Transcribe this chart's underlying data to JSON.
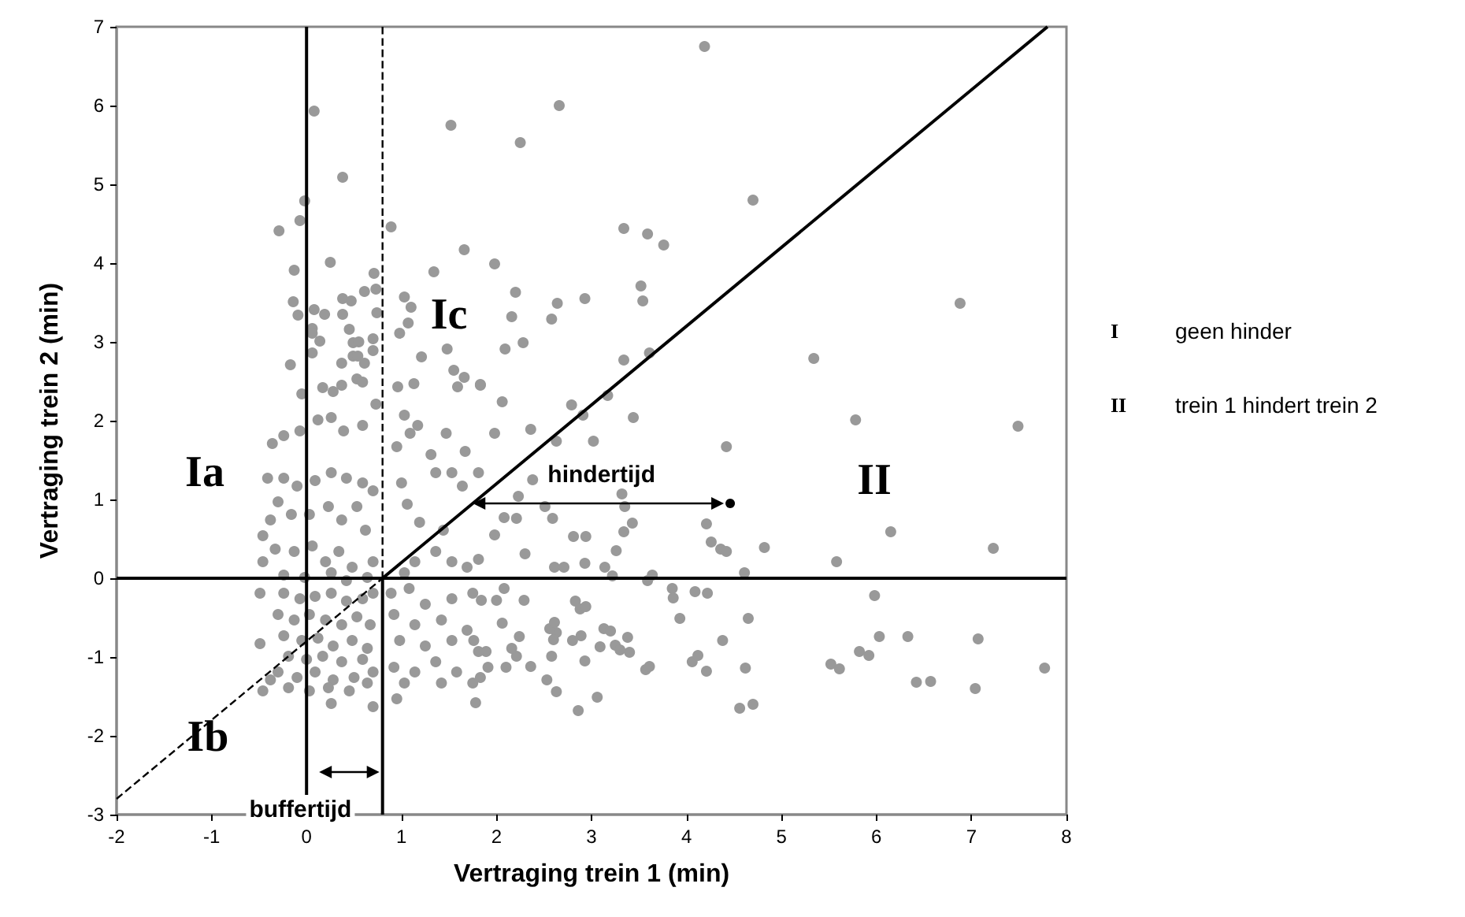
{
  "chart_data": {
    "type": "scatter",
    "xlabel": "Vertraging trein 1 (min)",
    "ylabel": "Vertraging trein 2 (min)",
    "xlim": [
      -2,
      8
    ],
    "xticks": [
      -2,
      -1,
      0,
      1,
      2,
      3,
      4,
      5,
      6,
      7,
      8
    ],
    "ylim": [
      -3,
      7
    ],
    "yticks": [
      -3,
      -2,
      -1,
      0,
      1,
      2,
      3,
      4,
      5,
      6,
      7
    ],
    "grid": false,
    "marker": "circle",
    "annotations": [
      "Ia",
      "Ib",
      "Ic",
      "II",
      "hindertijd",
      "buffertijd",
      "I",
      "geen hinder",
      "II",
      "trein 1 hindert trein 2"
    ],
    "series": [
      {
        "color": "#999999",
        "x": [
          4.19,
          2.66,
          2.25,
          4.7,
          3.34,
          3.59,
          3.76,
          1.98,
          2.2,
          3.52,
          3.54,
          2.64,
          2.93,
          2.16,
          2.58,
          2.09,
          2.28,
          3.34,
          3.61,
          6.88,
          5.34,
          1.83,
          2.06,
          2.79,
          3.17,
          5.78,
          7.49,
          4.42,
          3.44,
          3.02,
          2.36,
          1.98,
          2.63,
          2.91,
          2.23,
          2.38,
          2.51,
          2.59,
          2.08,
          2.21,
          1.98,
          2.81,
          2.94,
          3.34,
          3.43,
          3.35,
          3.32,
          3.26,
          2.3,
          2.61,
          2.71,
          2.93,
          3.14,
          3.22,
          3.59,
          3.64,
          4.21,
          4.26,
          4.36,
          4.42,
          4.61,
          4.82,
          5.58,
          6.15,
          7.23,
          5.98,
          3.85,
          3.86,
          4.09,
          4.22,
          3.93,
          4.65,
          4.38,
          4.06,
          4.12,
          4.21,
          4.62,
          4.56,
          4.7,
          5.52,
          5.61,
          5.82,
          5.92,
          6.03,
          6.33,
          7.07,
          6.42,
          6.57,
          7.04,
          7.77,
          2.83,
          2.88,
          2.94,
          3.13,
          3.2,
          3.38,
          3.4,
          3.25,
          3.3,
          3.09,
          2.93,
          2.89,
          2.8,
          2.63,
          2.6,
          2.56,
          2.61,
          2.58,
          2.24,
          2.06,
          2.29,
          2.0,
          1.84,
          2.08,
          2.36,
          2.21,
          2.16,
          2.1,
          3.57,
          3.61,
          2.53,
          2.63,
          3.06,
          2.86,
          1.91,
          1.83,
          1.89,
          1.76,
          1.78,
          0.08,
          1.52,
          0.38,
          -0.02,
          -0.07,
          -0.29,
          0.89,
          1.66,
          0.25,
          -0.13,
          0.71,
          1.34,
          0.61,
          0.73,
          0.38,
          0.47,
          -0.14,
          0.08,
          -0.09,
          0.19,
          0.38,
          0.74,
          1.03,
          1.1,
          1.07,
          0.98,
          0.45,
          0.06,
          0.06,
          0.14,
          0.06,
          0.49,
          0.55,
          0.7,
          0.7,
          0.49,
          0.54,
          0.61,
          0.37,
          -0.17,
          1.21,
          1.48,
          1.55,
          1.66,
          1.59,
          1.83,
          1.13,
          0.96,
          0.53,
          0.59,
          0.37,
          0.28,
          0.17,
          -0.05,
          -0.36,
          -0.24,
          -0.07,
          0.12,
          0.26,
          0.39,
          0.59,
          0.73,
          1.03,
          1.17,
          1.09,
          1.47,
          1.67,
          1.81,
          1.31,
          1.36,
          1.53,
          1.64,
          0.95,
          1.0,
          1.06,
          1.19,
          1.44,
          1.53,
          1.69,
          1.81,
          1.36,
          1.14,
          1.03,
          -0.41,
          -0.24,
          -0.1,
          0.09,
          0.26,
          0.42,
          0.59,
          0.7,
          -0.3,
          -0.16,
          0.03,
          0.23,
          0.37,
          0.53,
          0.62,
          -0.46,
          -0.33,
          -0.13,
          0.06,
          0.2,
          0.34,
          0.48,
          0.7,
          -0.24,
          -0.02,
          0.26,
          0.42,
          0.64,
          -0.38,
          -0.46,
          -0.49,
          -0.24,
          -0.07,
          0.09,
          0.26,
          0.42,
          0.59,
          0.7,
          -0.3,
          -0.13,
          0.03,
          0.2,
          0.37,
          0.53,
          0.67,
          -0.24,
          -0.05,
          0.12,
          0.28,
          0.48,
          0.64,
          -0.49,
          -0.19,
          0.0,
          0.17,
          0.37,
          0.59,
          -0.3,
          -0.1,
          0.09,
          0.28,
          0.5,
          0.7,
          -0.19,
          0.03,
          0.23,
          0.45,
          0.64,
          -0.46,
          -0.38,
          0.26,
          0.7,
          0.89,
          1.08,
          1.25,
          1.53,
          1.75,
          0.92,
          1.14,
          1.42,
          1.69,
          0.98,
          1.25,
          1.53,
          1.81,
          0.92,
          1.14,
          1.36,
          1.58,
          1.03,
          1.42,
          1.75,
          0.95
        ],
        "values": [
          6.75,
          6.0,
          5.53,
          4.8,
          4.44,
          4.37,
          4.23,
          3.99,
          3.63,
          3.71,
          3.52,
          3.49,
          3.55,
          3.32,
          3.29,
          2.91,
          2.99,
          2.77,
          2.86,
          3.49,
          2.79,
          2.45,
          2.24,
          2.2,
          2.32,
          2.01,
          1.93,
          1.67,
          2.04,
          1.74,
          1.89,
          1.84,
          1.74,
          2.07,
          1.04,
          1.25,
          0.91,
          0.76,
          0.77,
          0.76,
          0.55,
          0.53,
          0.53,
          0.59,
          0.7,
          0.91,
          1.07,
          0.35,
          0.31,
          0.14,
          0.14,
          0.19,
          0.14,
          0.03,
          -0.03,
          0.04,
          0.69,
          0.46,
          0.37,
          0.34,
          0.07,
          0.39,
          0.21,
          0.59,
          0.38,
          -0.22,
          -0.13,
          -0.25,
          -0.17,
          -0.19,
          -0.51,
          -0.51,
          -0.79,
          -1.06,
          -0.98,
          -1.18,
          -1.14,
          -1.65,
          -1.6,
          -1.09,
          -1.15,
          -0.93,
          -0.98,
          -0.74,
          -0.74,
          -0.77,
          -1.32,
          -1.31,
          -1.4,
          -1.14,
          -0.29,
          -0.39,
          -0.36,
          -0.64,
          -0.67,
          -0.75,
          -0.94,
          -0.85,
          -0.91,
          -0.87,
          -1.05,
          -0.73,
          -0.79,
          -0.69,
          -0.78,
          -0.64,
          -0.56,
          -0.99,
          -0.74,
          -0.57,
          -0.28,
          -0.28,
          -0.28,
          -0.13,
          -1.12,
          -0.99,
          -0.89,
          -1.13,
          -1.16,
          -1.12,
          -1.29,
          -1.44,
          -1.51,
          -1.68,
          -1.13,
          -1.26,
          -0.93,
          -0.79,
          -1.58,
          5.93,
          5.75,
          5.09,
          4.79,
          4.54,
          4.41,
          4.46,
          4.17,
          4.01,
          3.91,
          3.87,
          3.89,
          3.64,
          3.67,
          3.55,
          3.52,
          3.51,
          3.41,
          3.34,
          3.35,
          3.35,
          3.37,
          3.57,
          3.44,
          3.24,
          3.11,
          3.16,
          3.17,
          3.11,
          3.01,
          2.86,
          2.99,
          3.0,
          3.04,
          2.89,
          2.82,
          2.82,
          2.73,
          2.73,
          2.71,
          2.81,
          2.91,
          2.64,
          2.55,
          2.43,
          2.46,
          2.47,
          2.43,
          2.53,
          2.49,
          2.45,
          2.37,
          2.42,
          2.34,
          1.71,
          1.81,
          1.87,
          2.01,
          2.04,
          1.87,
          1.94,
          2.21,
          2.07,
          1.94,
          1.84,
          1.84,
          1.61,
          1.34,
          1.57,
          1.34,
          1.34,
          1.17,
          1.67,
          1.21,
          0.94,
          0.71,
          0.61,
          0.21,
          0.14,
          0.24,
          0.34,
          0.21,
          0.07,
          1.27,
          1.27,
          1.17,
          1.24,
          1.34,
          1.27,
          1.21,
          1.11,
          0.97,
          0.81,
          0.81,
          0.91,
          0.74,
          0.91,
          0.61,
          0.21,
          0.37,
          0.34,
          0.41,
          0.21,
          0.34,
          0.14,
          0.21,
          0.04,
          0.01,
          0.07,
          -0.03,
          0.01,
          0.74,
          0.54,
          -0.19,
          -0.19,
          -0.26,
          -0.23,
          -0.19,
          -0.29,
          -0.26,
          -0.19,
          -0.46,
          -0.53,
          -0.46,
          -0.53,
          -0.59,
          -0.49,
          -0.59,
          -0.73,
          -0.79,
          -0.76,
          -0.86,
          -0.79,
          -0.89,
          -0.83,
          -0.99,
          -1.03,
          -0.99,
          -1.06,
          -1.03,
          -1.19,
          -1.26,
          -1.19,
          -1.29,
          -1.26,
          -1.19,
          -1.39,
          -1.43,
          -1.39,
          -1.43,
          -1.33,
          -1.43,
          -1.29,
          -1.59,
          -1.63,
          -0.19,
          -0.13,
          -0.33,
          -0.26,
          -0.19,
          -0.46,
          -0.59,
          -0.53,
          -0.66,
          -0.79,
          -0.86,
          -0.79,
          -0.93,
          -1.13,
          -1.19,
          -1.06,
          -1.19,
          -1.33,
          -1.33,
          -1.33,
          -1.53
        ]
      },
      {
        "color": "#000000",
        "x": [
          4.46
        ],
        "values": [
          0.95
        ]
      },
      {
        "type": "line",
        "color": "#000000",
        "line_style": "solid",
        "marker": "none",
        "x": [
          0.8,
          7.8
        ],
        "values": [
          0,
          7
        ]
      },
      {
        "type": "line",
        "color": "#000000",
        "line_style": "dashed",
        "marker": "none",
        "x": [
          -2,
          0.8
        ],
        "values": [
          -2.8,
          0
        ]
      },
      {
        "type": "line",
        "color": "#000000",
        "line_style": "dashed",
        "marker": "none",
        "x": [
          0.8,
          0.8
        ],
        "values": [
          7,
          0
        ]
      },
      {
        "type": "line",
        "color": "#000000",
        "line_style": "solid",
        "marker": "none",
        "x": [
          0.8,
          0.8
        ],
        "values": [
          0,
          -3
        ]
      },
      {
        "type": "line",
        "color": "#000000",
        "line_style": "solid",
        "marker": "none",
        "x": [
          0,
          0
        ],
        "values": [
          -2.75,
          7
        ]
      },
      {
        "type": "line",
        "color": "#000000",
        "line_style": "solid",
        "marker": "none",
        "x": [
          -2,
          8
        ],
        "values": [
          0,
          0
        ]
      }
    ]
  }
}
